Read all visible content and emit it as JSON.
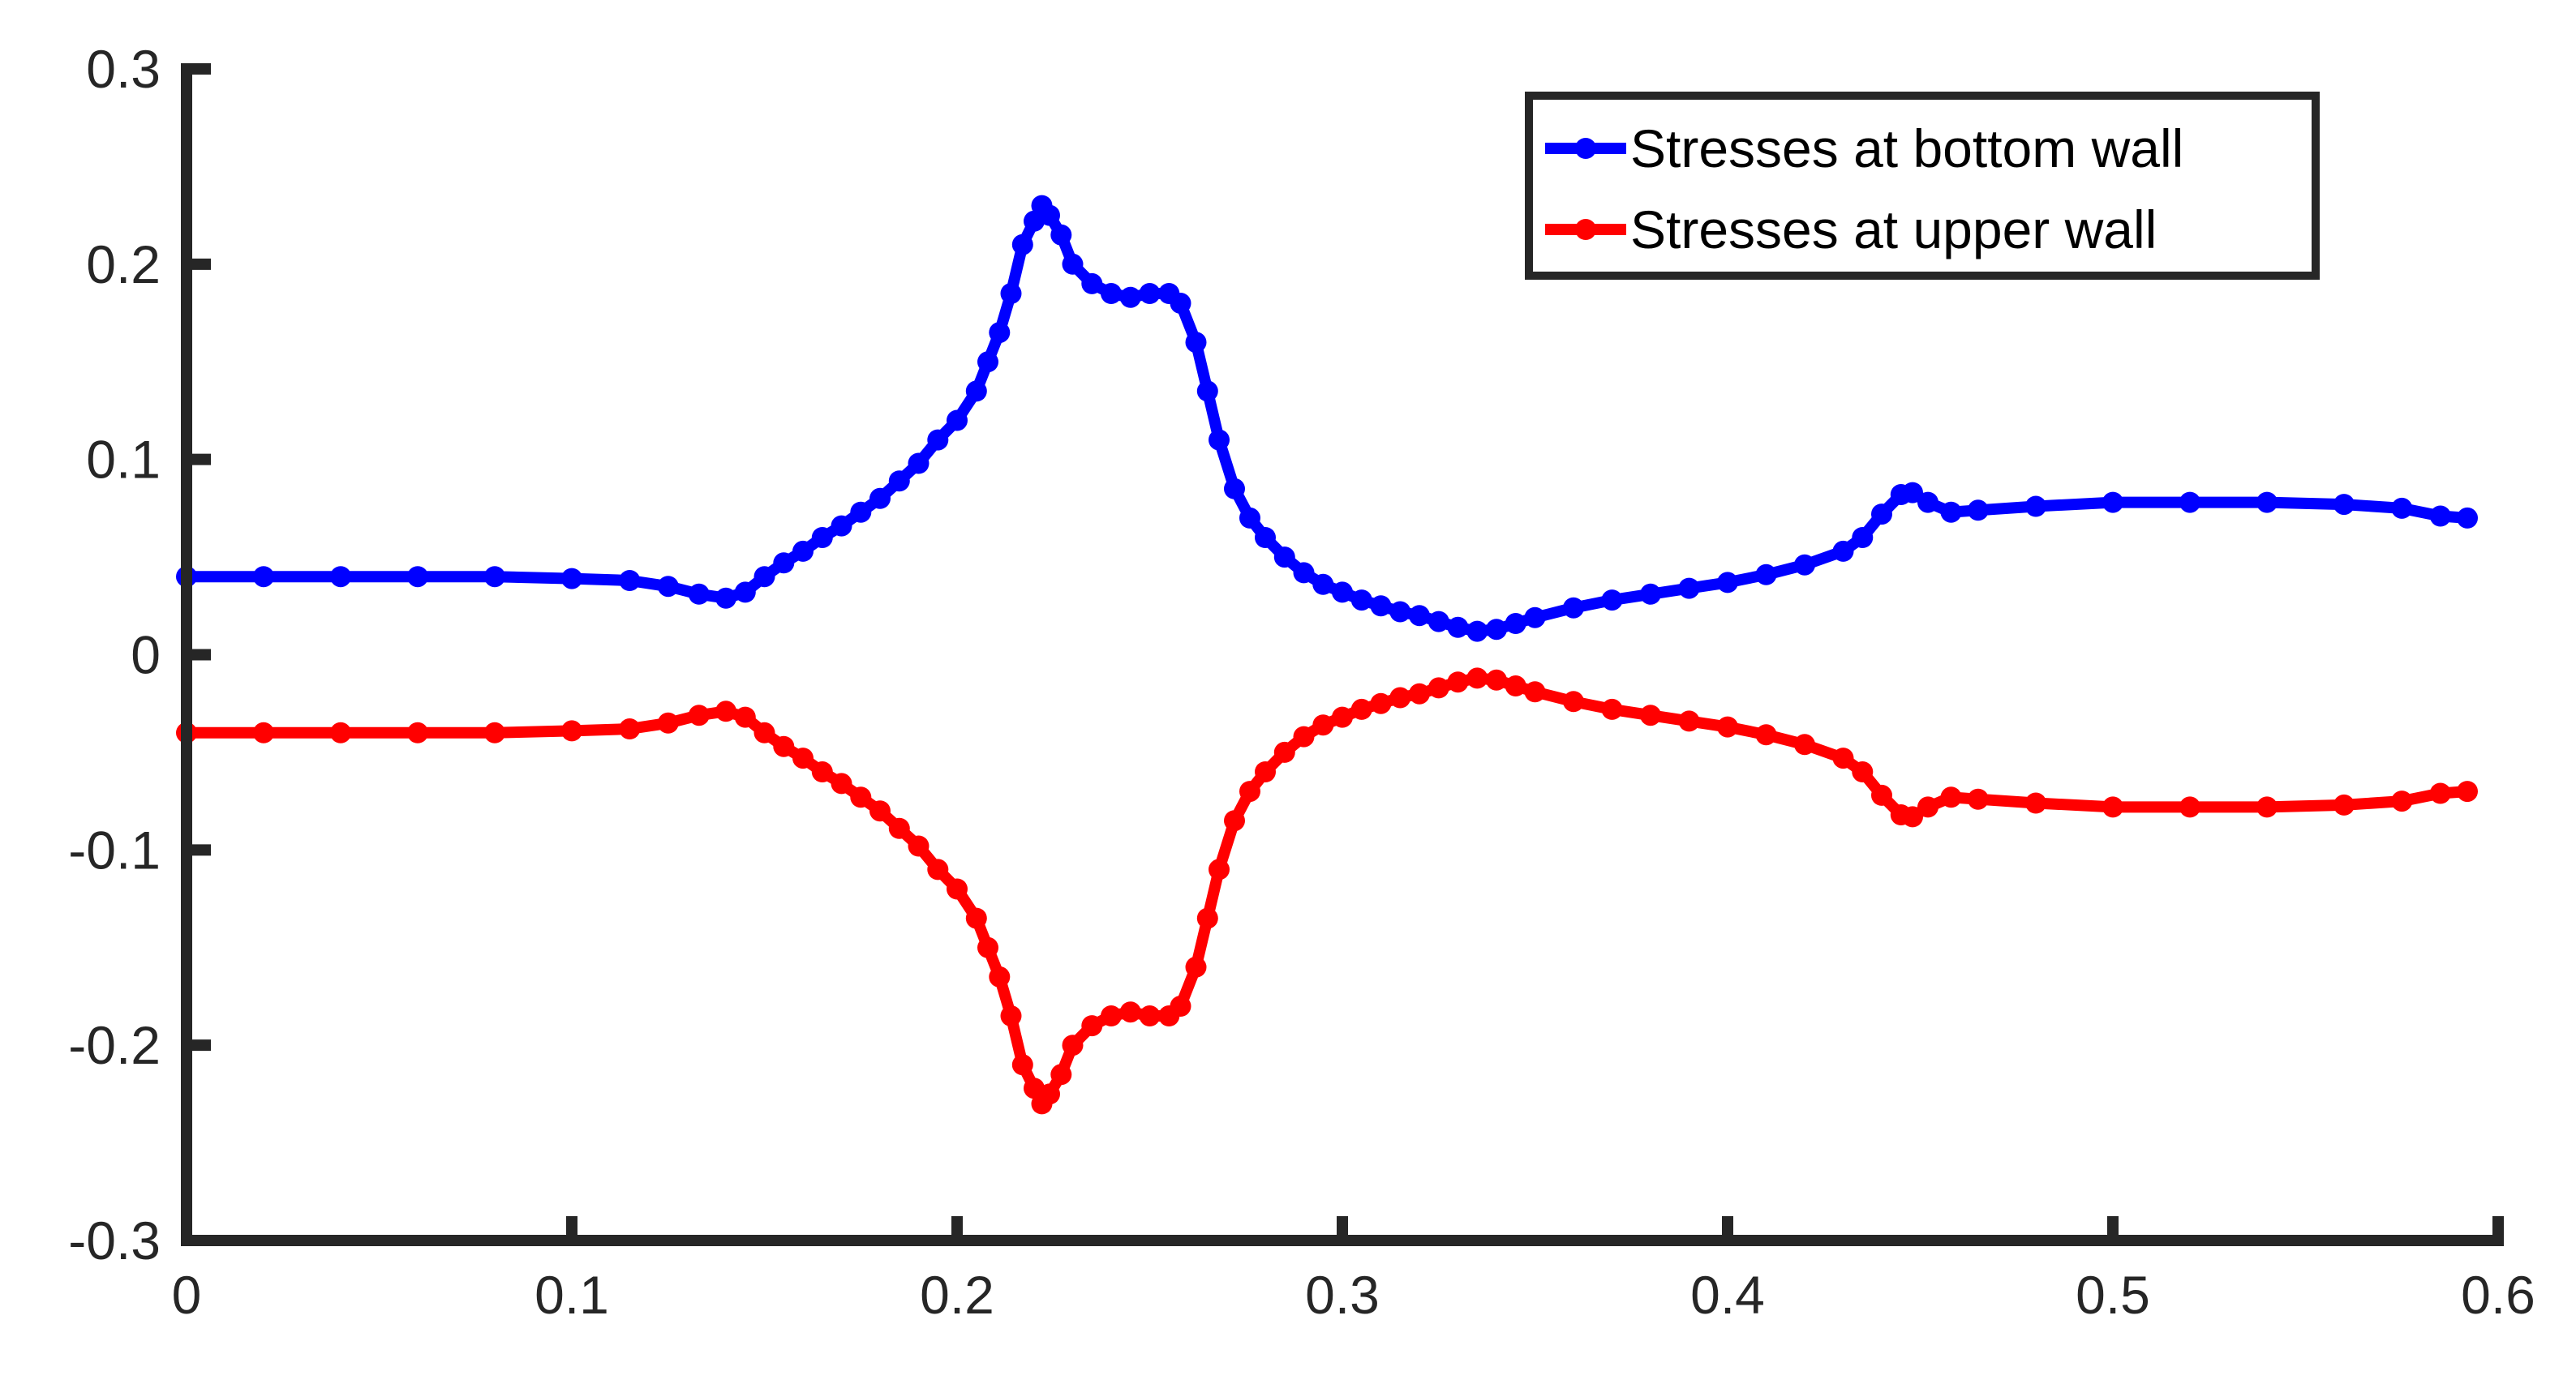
{
  "chart_data": {
    "type": "line",
    "xlim": [
      0,
      0.6
    ],
    "ylim": [
      -0.3,
      0.3
    ],
    "x_ticks": [
      "0",
      "0.1",
      "0.2",
      "0.3",
      "0.4",
      "0.5",
      "0.6"
    ],
    "y_ticks": [
      "0.3",
      "0.2",
      "0.1",
      "0",
      "-0.1",
      "-0.2",
      "-0.3"
    ],
    "grid": false,
    "legend_position": "top-right",
    "axis_color": "#262626",
    "series": [
      {
        "name": "Stresses at bottom wall",
        "color": "#0000ff",
        "marker": "circle",
        "points": [
          [
            0.0,
            0.04
          ],
          [
            0.02,
            0.04
          ],
          [
            0.04,
            0.04
          ],
          [
            0.06,
            0.04
          ],
          [
            0.08,
            0.04
          ],
          [
            0.1,
            0.039
          ],
          [
            0.115,
            0.038
          ],
          [
            0.125,
            0.035
          ],
          [
            0.133,
            0.031
          ],
          [
            0.14,
            0.029
          ],
          [
            0.145,
            0.032
          ],
          [
            0.15,
            0.04
          ],
          [
            0.155,
            0.047
          ],
          [
            0.16,
            0.053
          ],
          [
            0.165,
            0.06
          ],
          [
            0.17,
            0.066
          ],
          [
            0.175,
            0.073
          ],
          [
            0.18,
            0.08
          ],
          [
            0.185,
            0.089
          ],
          [
            0.19,
            0.098
          ],
          [
            0.195,
            0.11
          ],
          [
            0.2,
            0.12
          ],
          [
            0.205,
            0.135
          ],
          [
            0.208,
            0.15
          ],
          [
            0.211,
            0.165
          ],
          [
            0.214,
            0.185
          ],
          [
            0.217,
            0.21
          ],
          [
            0.22,
            0.222
          ],
          [
            0.222,
            0.23
          ],
          [
            0.224,
            0.225
          ],
          [
            0.227,
            0.215
          ],
          [
            0.23,
            0.2
          ],
          [
            0.235,
            0.19
          ],
          [
            0.24,
            0.185
          ],
          [
            0.245,
            0.183
          ],
          [
            0.25,
            0.185
          ],
          [
            0.255,
            0.185
          ],
          [
            0.258,
            0.18
          ],
          [
            0.262,
            0.16
          ],
          [
            0.265,
            0.135
          ],
          [
            0.268,
            0.11
          ],
          [
            0.272,
            0.085
          ],
          [
            0.276,
            0.07
          ],
          [
            0.28,
            0.06
          ],
          [
            0.285,
            0.05
          ],
          [
            0.29,
            0.042
          ],
          [
            0.295,
            0.036
          ],
          [
            0.3,
            0.032
          ],
          [
            0.305,
            0.028
          ],
          [
            0.31,
            0.025
          ],
          [
            0.315,
            0.022
          ],
          [
            0.32,
            0.02
          ],
          [
            0.325,
            0.017
          ],
          [
            0.33,
            0.014
          ],
          [
            0.335,
            0.012
          ],
          [
            0.34,
            0.013
          ],
          [
            0.345,
            0.016
          ],
          [
            0.35,
            0.019
          ],
          [
            0.36,
            0.024
          ],
          [
            0.37,
            0.028
          ],
          [
            0.38,
            0.031
          ],
          [
            0.39,
            0.034
          ],
          [
            0.4,
            0.037
          ],
          [
            0.41,
            0.041
          ],
          [
            0.42,
            0.046
          ],
          [
            0.43,
            0.053
          ],
          [
            0.435,
            0.06
          ],
          [
            0.44,
            0.072
          ],
          [
            0.445,
            0.082
          ],
          [
            0.448,
            0.083
          ],
          [
            0.452,
            0.078
          ],
          [
            0.458,
            0.073
          ],
          [
            0.465,
            0.074
          ],
          [
            0.48,
            0.076
          ],
          [
            0.5,
            0.078
          ],
          [
            0.52,
            0.078
          ],
          [
            0.54,
            0.078
          ],
          [
            0.56,
            0.077
          ],
          [
            0.575,
            0.075
          ],
          [
            0.585,
            0.071
          ],
          [
            0.592,
            0.07
          ]
        ]
      },
      {
        "name": "Stresses at upper wall",
        "color": "#ff0000",
        "marker": "circle",
        "points": [
          [
            0.0,
            -0.04
          ],
          [
            0.02,
            -0.04
          ],
          [
            0.04,
            -0.04
          ],
          [
            0.06,
            -0.04
          ],
          [
            0.08,
            -0.04
          ],
          [
            0.1,
            -0.039
          ],
          [
            0.115,
            -0.038
          ],
          [
            0.125,
            -0.035
          ],
          [
            0.133,
            -0.031
          ],
          [
            0.14,
            -0.029
          ],
          [
            0.145,
            -0.032
          ],
          [
            0.15,
            -0.04
          ],
          [
            0.155,
            -0.047
          ],
          [
            0.16,
            -0.053
          ],
          [
            0.165,
            -0.06
          ],
          [
            0.17,
            -0.066
          ],
          [
            0.175,
            -0.073
          ],
          [
            0.18,
            -0.08
          ],
          [
            0.185,
            -0.089
          ],
          [
            0.19,
            -0.098
          ],
          [
            0.195,
            -0.11
          ],
          [
            0.2,
            -0.12
          ],
          [
            0.205,
            -0.135
          ],
          [
            0.208,
            -0.15
          ],
          [
            0.211,
            -0.165
          ],
          [
            0.214,
            -0.185
          ],
          [
            0.217,
            -0.21
          ],
          [
            0.22,
            -0.222
          ],
          [
            0.222,
            -0.23
          ],
          [
            0.224,
            -0.225
          ],
          [
            0.227,
            -0.215
          ],
          [
            0.23,
            -0.2
          ],
          [
            0.235,
            -0.19
          ],
          [
            0.24,
            -0.185
          ],
          [
            0.245,
            -0.183
          ],
          [
            0.25,
            -0.185
          ],
          [
            0.255,
            -0.185
          ],
          [
            0.258,
            -0.18
          ],
          [
            0.262,
            -0.16
          ],
          [
            0.265,
            -0.135
          ],
          [
            0.268,
            -0.11
          ],
          [
            0.272,
            -0.085
          ],
          [
            0.276,
            -0.07
          ],
          [
            0.28,
            -0.06
          ],
          [
            0.285,
            -0.05
          ],
          [
            0.29,
            -0.042
          ],
          [
            0.295,
            -0.036
          ],
          [
            0.3,
            -0.032
          ],
          [
            0.305,
            -0.028
          ],
          [
            0.31,
            -0.025
          ],
          [
            0.315,
            -0.022
          ],
          [
            0.32,
            -0.02
          ],
          [
            0.325,
            -0.017
          ],
          [
            0.33,
            -0.014
          ],
          [
            0.335,
            -0.012
          ],
          [
            0.34,
            -0.013
          ],
          [
            0.345,
            -0.016
          ],
          [
            0.35,
            -0.019
          ],
          [
            0.36,
            -0.024
          ],
          [
            0.37,
            -0.028
          ],
          [
            0.38,
            -0.031
          ],
          [
            0.39,
            -0.034
          ],
          [
            0.4,
            -0.037
          ],
          [
            0.41,
            -0.041
          ],
          [
            0.42,
            -0.046
          ],
          [
            0.43,
            -0.053
          ],
          [
            0.435,
            -0.06
          ],
          [
            0.44,
            -0.072
          ],
          [
            0.445,
            -0.082
          ],
          [
            0.448,
            -0.083
          ],
          [
            0.452,
            -0.078
          ],
          [
            0.458,
            -0.073
          ],
          [
            0.465,
            -0.074
          ],
          [
            0.48,
            -0.076
          ],
          [
            0.5,
            -0.078
          ],
          [
            0.52,
            -0.078
          ],
          [
            0.54,
            -0.078
          ],
          [
            0.56,
            -0.077
          ],
          [
            0.575,
            -0.075
          ],
          [
            0.585,
            -0.071
          ],
          [
            0.592,
            -0.07
          ]
        ]
      }
    ]
  }
}
